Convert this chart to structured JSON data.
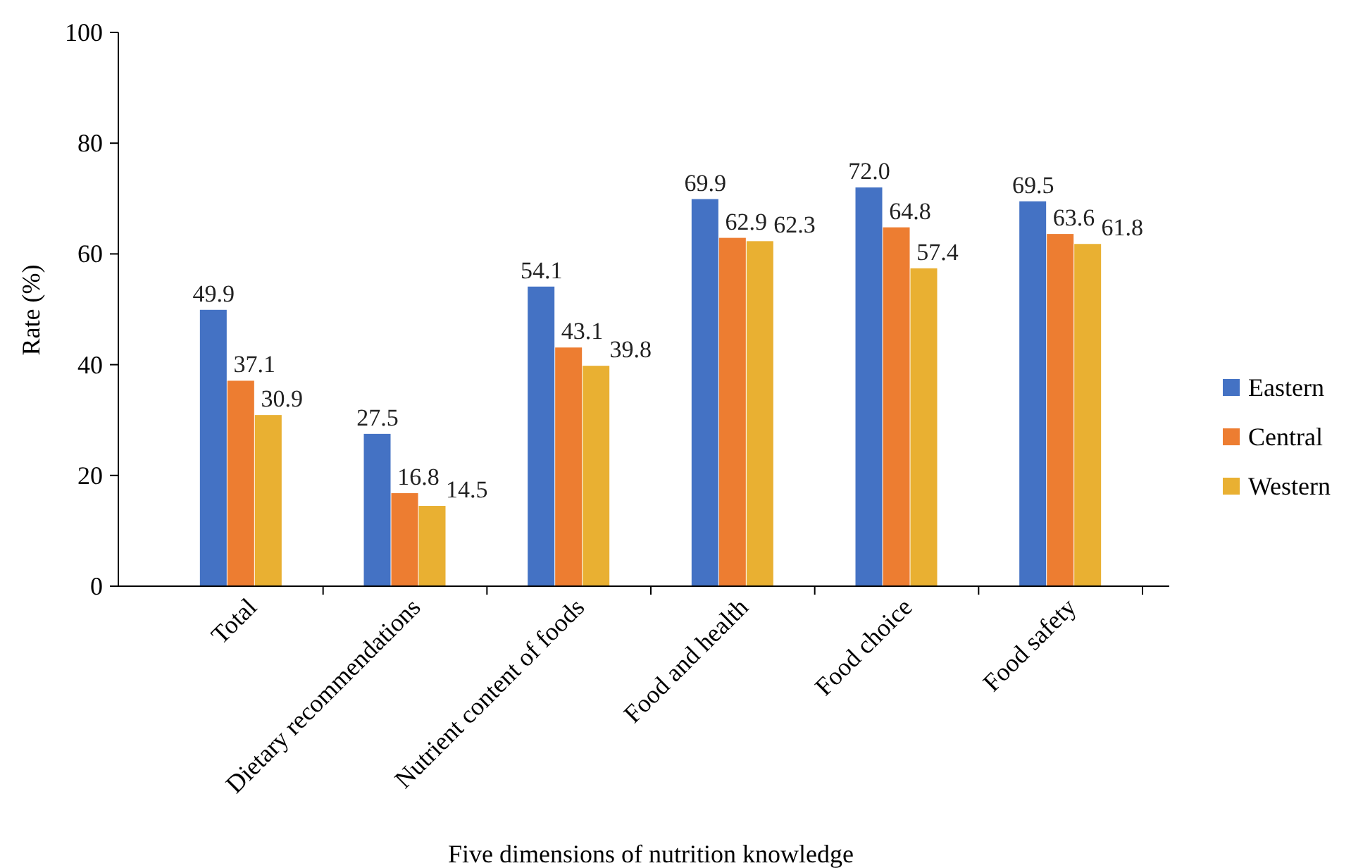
{
  "chart_data": {
    "type": "bar",
    "xlabel": "Five dimensions of nutrition knowledge",
    "ylabel": "Rate (%)",
    "categories": [
      "Total",
      "Dietary recommendations",
      "Nutrient content of foods",
      "Food and health",
      "Food choice",
      "Food safety"
    ],
    "series": [
      {
        "name": "Eastern",
        "color": "#4472c4",
        "values": [
          49.9,
          27.5,
          54.1,
          69.9,
          72.0,
          69.5
        ]
      },
      {
        "name": "Central",
        "color": "#ed7d31",
        "values": [
          37.1,
          16.8,
          43.1,
          62.9,
          64.8,
          63.6
        ]
      },
      {
        "name": "Western",
        "color": "#e9b032",
        "values": [
          30.9,
          14.5,
          39.8,
          62.3,
          57.4,
          61.8
        ]
      }
    ],
    "value_labels": [
      [
        "49.9",
        "27.5",
        "54.1",
        "69.9",
        "72.0",
        "69.5"
      ],
      [
        "37.1",
        "16.8",
        "43.1",
        "62.9",
        "64.8",
        "63.6"
      ],
      [
        "30.9",
        "14.5",
        "39.8",
        "62.3",
        "57.4",
        "61.8"
      ]
    ],
    "ylim": [
      0,
      100
    ],
    "yticks": [
      0,
      20,
      40,
      60,
      80,
      100
    ],
    "grid": false,
    "legend": "right"
  }
}
